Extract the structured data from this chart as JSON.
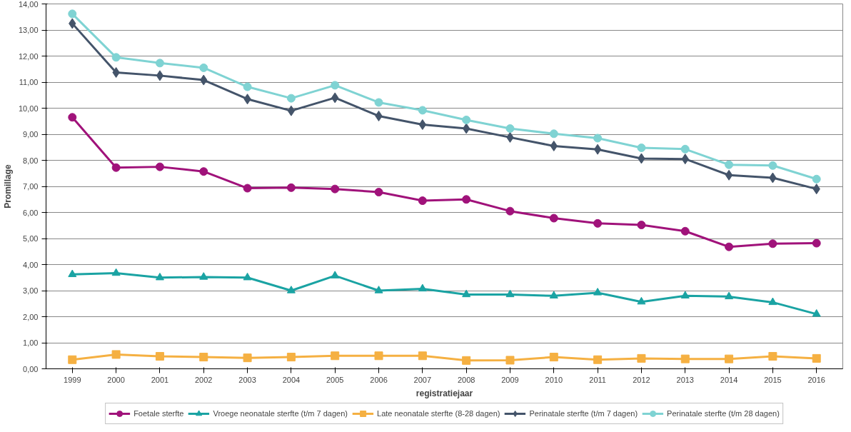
{
  "chart_data": {
    "type": "line",
    "xlabel": "registratiejaar",
    "ylabel": "Promillage",
    "categories": [
      "1999",
      "2000",
      "2001",
      "2002",
      "2003",
      "2004",
      "2005",
      "2006",
      "2007",
      "2008",
      "2009",
      "2010",
      "2011",
      "2012",
      "2013",
      "2014",
      "2015",
      "2016"
    ],
    "ylim": [
      0,
      14
    ],
    "yticks": [
      {
        "value": 0,
        "label": "0,00"
      },
      {
        "value": 1,
        "label": "1,00"
      },
      {
        "value": 2,
        "label": "2,00"
      },
      {
        "value": 3,
        "label": "3,00"
      },
      {
        "value": 4,
        "label": "4,00"
      },
      {
        "value": 5,
        "label": "5,00"
      },
      {
        "value": 6,
        "label": "6,00"
      },
      {
        "value": 7,
        "label": "7,00"
      },
      {
        "value": 8,
        "label": "8,00"
      },
      {
        "value": 9,
        "label": "9,00"
      },
      {
        "value": 10,
        "label": "10,00"
      },
      {
        "value": 11,
        "label": "11,00"
      },
      {
        "value": 12,
        "label": "12,00"
      },
      {
        "value": 13,
        "label": "13,00"
      },
      {
        "value": 14,
        "label": "14,00"
      }
    ],
    "grid": "y",
    "legend": "bottom",
    "line_style": "solid",
    "series": [
      {
        "name": "Foetale sterfte",
        "color": "#a0127a",
        "marker": "circle",
        "values": [
          9.65,
          7.72,
          7.75,
          7.57,
          6.93,
          6.95,
          6.9,
          6.78,
          6.45,
          6.5,
          6.05,
          5.78,
          5.58,
          5.52,
          5.28,
          4.68,
          4.8,
          4.82
        ]
      },
      {
        "name": "Vroege neonatale sterfte (t/m 7 dagen)",
        "color": "#1aa3a3",
        "marker": "triangle",
        "values": [
          3.62,
          3.67,
          3.5,
          3.52,
          3.5,
          3.0,
          3.57,
          3.0,
          3.07,
          2.85,
          2.85,
          2.8,
          2.92,
          2.57,
          2.8,
          2.77,
          2.55,
          2.1
        ]
      },
      {
        "name": "Late neonatale sterfte (8-28 dagen)",
        "color": "#f5b042",
        "marker": "square",
        "values": [
          0.35,
          0.55,
          0.48,
          0.45,
          0.42,
          0.45,
          0.5,
          0.5,
          0.5,
          0.32,
          0.33,
          0.45,
          0.35,
          0.4,
          0.38,
          0.38,
          0.48,
          0.4
        ]
      },
      {
        "name": "Perinatale sterfte (t/m 7 dagen)",
        "color": "#44546a",
        "marker": "diamond",
        "values": [
          13.25,
          11.37,
          11.25,
          11.08,
          10.35,
          9.9,
          10.4,
          9.7,
          9.37,
          9.22,
          8.88,
          8.55,
          8.42,
          8.07,
          8.05,
          7.43,
          7.33,
          6.9
        ]
      },
      {
        "name": "Perinatale sterfte (t/m 28 dagen)",
        "color": "#7fd3d3",
        "marker": "circle",
        "values": [
          13.62,
          11.95,
          11.73,
          11.55,
          10.82,
          10.38,
          10.88,
          10.22,
          9.92,
          9.55,
          9.22,
          9.02,
          8.85,
          8.48,
          8.43,
          7.83,
          7.8,
          7.28
        ]
      }
    ]
  }
}
